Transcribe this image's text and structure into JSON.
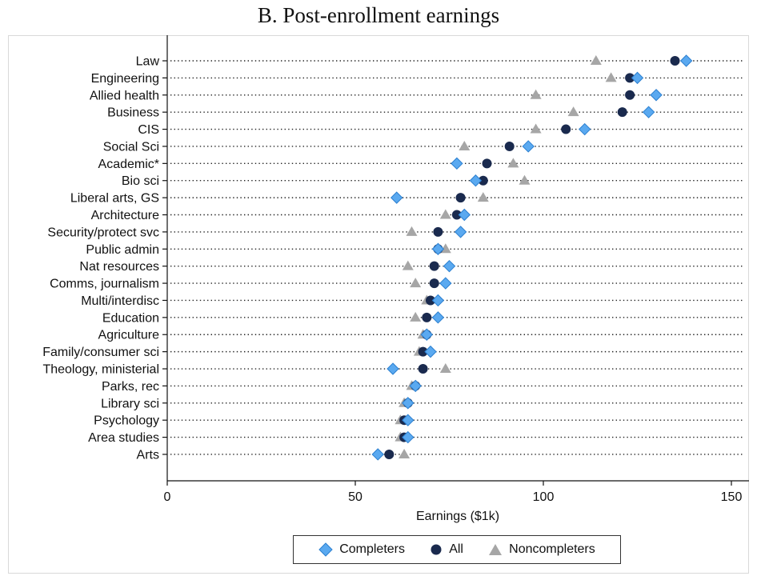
{
  "chart_data": {
    "type": "scatter",
    "title": "B. Post-enrollment earnings",
    "xlabel": "Earnings ($1k)",
    "xlim": [
      0,
      155
    ],
    "xticks": [
      0,
      50,
      100,
      150
    ],
    "categories": [
      "Law",
      "Engineering",
      "Allied health",
      "Business",
      "CIS",
      "Social Sci",
      "Academic*",
      "Bio sci",
      "Liberal arts, GS",
      "Architecture",
      "Security/protect svc",
      "Public admin",
      "Nat resources",
      "Comms, journalism",
      "Multi/interdisc",
      "Education",
      "Agriculture",
      "Family/consumer sci",
      "Theology, ministerial",
      "Parks, rec",
      "Library sci",
      "Psychology",
      "Area studies",
      "Arts"
    ],
    "series": [
      {
        "name": "Completers",
        "marker": "diamond",
        "color": "#5aa9f0",
        "values": [
          138,
          125,
          130,
          128,
          111,
          96,
          77,
          82,
          61,
          79,
          78,
          72,
          75,
          74,
          72,
          72,
          69,
          70,
          60,
          66,
          64,
          64,
          64,
          56
        ]
      },
      {
        "name": "All",
        "marker": "circle",
        "color": "#1a2a4e",
        "values": [
          135,
          123,
          123,
          121,
          106,
          91,
          85,
          84,
          78,
          77,
          72,
          72,
          71,
          71,
          70,
          69,
          69,
          68,
          68,
          66,
          64,
          63,
          63,
          59
        ]
      },
      {
        "name": "Noncompleters",
        "marker": "triangle",
        "color": "#a6a6a6",
        "values": [
          114,
          118,
          98,
          108,
          98,
          79,
          92,
          95,
          84,
          74,
          65,
          74,
          64,
          66,
          69,
          66,
          68,
          67,
          74,
          65,
          63,
          62,
          62,
          63
        ]
      }
    ],
    "legend_position": "bottom"
  }
}
